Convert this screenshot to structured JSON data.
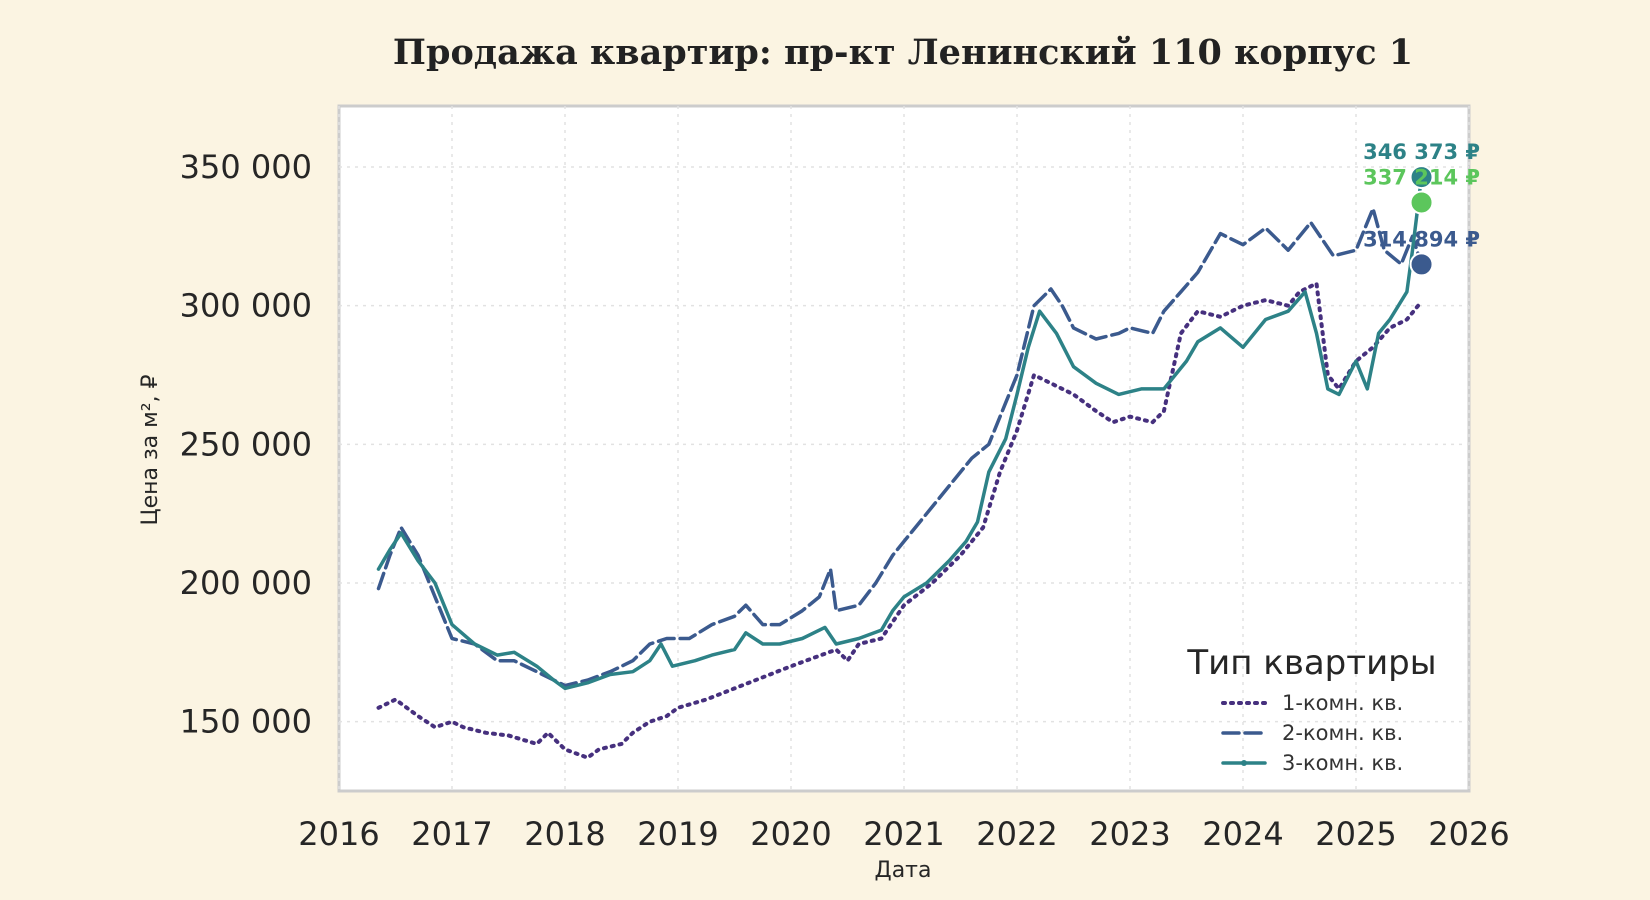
{
  "chart_data": {
    "type": "line",
    "title": "Продажа квартир: пр-кт Ленинский 110 корпус 1",
    "xlabel": "Дата",
    "ylabel": "Цена за м², ₽",
    "xlim": [
      2016,
      2026
    ],
    "ylim": [
      125000,
      372000
    ],
    "x_ticks": [
      "2016",
      "2017",
      "2018",
      "2019",
      "2020",
      "2021",
      "2022",
      "2023",
      "2024",
      "2025",
      "2026"
    ],
    "y_ticks": [
      {
        "value": 150000,
        "label": "150 000"
      },
      {
        "value": 200000,
        "label": "200 000"
      },
      {
        "value": 250000,
        "label": "250 000"
      },
      {
        "value": 300000,
        "label": "300 000"
      },
      {
        "value": 350000,
        "label": "350 000"
      }
    ],
    "grid": true,
    "legend": {
      "title": "Тип квартиры",
      "position": "bottom-right"
    },
    "series": [
      {
        "name": "1-комн. кв.",
        "style": "dotted",
        "color": "#46307e",
        "end_label": "",
        "points": [
          [
            2016.35,
            155000
          ],
          [
            2016.5,
            158000
          ],
          [
            2016.7,
            152000
          ],
          [
            2016.85,
            148000
          ],
          [
            2017.0,
            150000
          ],
          [
            2017.1,
            148000
          ],
          [
            2017.3,
            146000
          ],
          [
            2017.5,
            145000
          ],
          [
            2017.75,
            142000
          ],
          [
            2017.85,
            146000
          ],
          [
            2018.0,
            140000
          ],
          [
            2018.2,
            137000
          ],
          [
            2018.3,
            140000
          ],
          [
            2018.5,
            142000
          ],
          [
            2018.6,
            146000
          ],
          [
            2018.75,
            150000
          ],
          [
            2018.9,
            152000
          ],
          [
            2019.0,
            155000
          ],
          [
            2019.25,
            158000
          ],
          [
            2019.5,
            162000
          ],
          [
            2019.75,
            166000
          ],
          [
            2020.0,
            170000
          ],
          [
            2020.2,
            173000
          ],
          [
            2020.4,
            176000
          ],
          [
            2020.5,
            172000
          ],
          [
            2020.6,
            178000
          ],
          [
            2020.8,
            180000
          ],
          [
            2021.0,
            192000
          ],
          [
            2021.25,
            200000
          ],
          [
            2021.5,
            210000
          ],
          [
            2021.7,
            220000
          ],
          [
            2021.85,
            240000
          ],
          [
            2022.0,
            255000
          ],
          [
            2022.15,
            275000
          ],
          [
            2022.3,
            272000
          ],
          [
            2022.5,
            268000
          ],
          [
            2022.7,
            262000
          ],
          [
            2022.85,
            258000
          ],
          [
            2023.0,
            260000
          ],
          [
            2023.2,
            258000
          ],
          [
            2023.3,
            262000
          ],
          [
            2023.45,
            290000
          ],
          [
            2023.6,
            298000
          ],
          [
            2023.8,
            296000
          ],
          [
            2024.0,
            300000
          ],
          [
            2024.2,
            302000
          ],
          [
            2024.4,
            300000
          ],
          [
            2024.5,
            305000
          ],
          [
            2024.65,
            308000
          ],
          [
            2024.75,
            275000
          ],
          [
            2024.85,
            270000
          ],
          [
            2025.0,
            280000
          ],
          [
            2025.15,
            285000
          ],
          [
            2025.3,
            292000
          ],
          [
            2025.45,
            295000
          ],
          [
            2025.55,
            300000
          ]
        ]
      },
      {
        "name": "2-комн. кв.",
        "style": "dashed",
        "color": "#3b5a8e",
        "end_label": "314 894 ₽",
        "end_value": 314894,
        "points": [
          [
            2016.35,
            198000
          ],
          [
            2016.45,
            210000
          ],
          [
            2016.55,
            220000
          ],
          [
            2016.7,
            210000
          ],
          [
            2016.85,
            195000
          ],
          [
            2017.0,
            180000
          ],
          [
            2017.2,
            178000
          ],
          [
            2017.4,
            172000
          ],
          [
            2017.55,
            172000
          ],
          [
            2017.75,
            168000
          ],
          [
            2018.0,
            163000
          ],
          [
            2018.2,
            165000
          ],
          [
            2018.4,
            168000
          ],
          [
            2018.6,
            172000
          ],
          [
            2018.75,
            178000
          ],
          [
            2018.9,
            180000
          ],
          [
            2019.1,
            180000
          ],
          [
            2019.3,
            185000
          ],
          [
            2019.5,
            188000
          ],
          [
            2019.6,
            192000
          ],
          [
            2019.75,
            185000
          ],
          [
            2019.9,
            185000
          ],
          [
            2020.1,
            190000
          ],
          [
            2020.25,
            195000
          ],
          [
            2020.35,
            205000
          ],
          [
            2020.4,
            190000
          ],
          [
            2020.6,
            192000
          ],
          [
            2020.75,
            200000
          ],
          [
            2020.9,
            210000
          ],
          [
            2021.0,
            215000
          ],
          [
            2021.2,
            225000
          ],
          [
            2021.4,
            235000
          ],
          [
            2021.6,
            245000
          ],
          [
            2021.75,
            250000
          ],
          [
            2021.9,
            265000
          ],
          [
            2022.0,
            275000
          ],
          [
            2022.15,
            300000
          ],
          [
            2022.3,
            306000
          ],
          [
            2022.4,
            300000
          ],
          [
            2022.5,
            292000
          ],
          [
            2022.7,
            288000
          ],
          [
            2022.9,
            290000
          ],
          [
            2023.0,
            292000
          ],
          [
            2023.2,
            290000
          ],
          [
            2023.3,
            298000
          ],
          [
            2023.45,
            305000
          ],
          [
            2023.6,
            312000
          ],
          [
            2023.8,
            326000
          ],
          [
            2024.0,
            322000
          ],
          [
            2024.2,
            328000
          ],
          [
            2024.4,
            320000
          ],
          [
            2024.6,
            330000
          ],
          [
            2024.8,
            318000
          ],
          [
            2025.0,
            320000
          ],
          [
            2025.15,
            335000
          ],
          [
            2025.25,
            320000
          ],
          [
            2025.4,
            315000
          ],
          [
            2025.5,
            325000
          ],
          [
            2025.58,
            314894
          ]
        ]
      },
      {
        "name": "3-комн. кв.",
        "style": "solid",
        "color": "#2d8287",
        "end_label": "346 373 ₽",
        "end_value": 346373,
        "points": [
          [
            2016.35,
            205000
          ],
          [
            2016.45,
            212000
          ],
          [
            2016.55,
            218000
          ],
          [
            2016.7,
            208000
          ],
          [
            2016.85,
            200000
          ],
          [
            2017.0,
            185000
          ],
          [
            2017.2,
            178000
          ],
          [
            2017.4,
            174000
          ],
          [
            2017.55,
            175000
          ],
          [
            2017.75,
            170000
          ],
          [
            2017.9,
            165000
          ],
          [
            2018.0,
            162000
          ],
          [
            2018.2,
            164000
          ],
          [
            2018.4,
            167000
          ],
          [
            2018.6,
            168000
          ],
          [
            2018.75,
            172000
          ],
          [
            2018.85,
            178000
          ],
          [
            2018.95,
            170000
          ],
          [
            2019.15,
            172000
          ],
          [
            2019.3,
            174000
          ],
          [
            2019.5,
            176000
          ],
          [
            2019.6,
            182000
          ],
          [
            2019.75,
            178000
          ],
          [
            2019.9,
            178000
          ],
          [
            2020.1,
            180000
          ],
          [
            2020.3,
            184000
          ],
          [
            2020.4,
            178000
          ],
          [
            2020.6,
            180000
          ],
          [
            2020.8,
            183000
          ],
          [
            2020.9,
            190000
          ],
          [
            2021.0,
            195000
          ],
          [
            2021.2,
            200000
          ],
          [
            2021.4,
            208000
          ],
          [
            2021.55,
            215000
          ],
          [
            2021.65,
            222000
          ],
          [
            2021.75,
            240000
          ],
          [
            2021.9,
            252000
          ],
          [
            2022.0,
            268000
          ],
          [
            2022.1,
            285000
          ],
          [
            2022.2,
            298000
          ],
          [
            2022.35,
            290000
          ],
          [
            2022.5,
            278000
          ],
          [
            2022.7,
            272000
          ],
          [
            2022.9,
            268000
          ],
          [
            2023.1,
            270000
          ],
          [
            2023.3,
            270000
          ],
          [
            2023.4,
            275000
          ],
          [
            2023.5,
            280000
          ],
          [
            2023.6,
            287000
          ],
          [
            2023.8,
            292000
          ],
          [
            2024.0,
            285000
          ],
          [
            2024.2,
            295000
          ],
          [
            2024.4,
            298000
          ],
          [
            2024.55,
            305000
          ],
          [
            2024.65,
            290000
          ],
          [
            2024.75,
            270000
          ],
          [
            2024.85,
            268000
          ],
          [
            2025.0,
            280000
          ],
          [
            2025.1,
            270000
          ],
          [
            2025.2,
            290000
          ],
          [
            2025.3,
            295000
          ],
          [
            2025.45,
            305000
          ],
          [
            2025.5,
            320000
          ],
          [
            2025.58,
            346373
          ]
        ]
      },
      {
        "name": "",
        "style": "none",
        "color": "#5cc65c",
        "end_label": "337 214 ₽",
        "end_value": 337214,
        "points": []
      }
    ]
  }
}
